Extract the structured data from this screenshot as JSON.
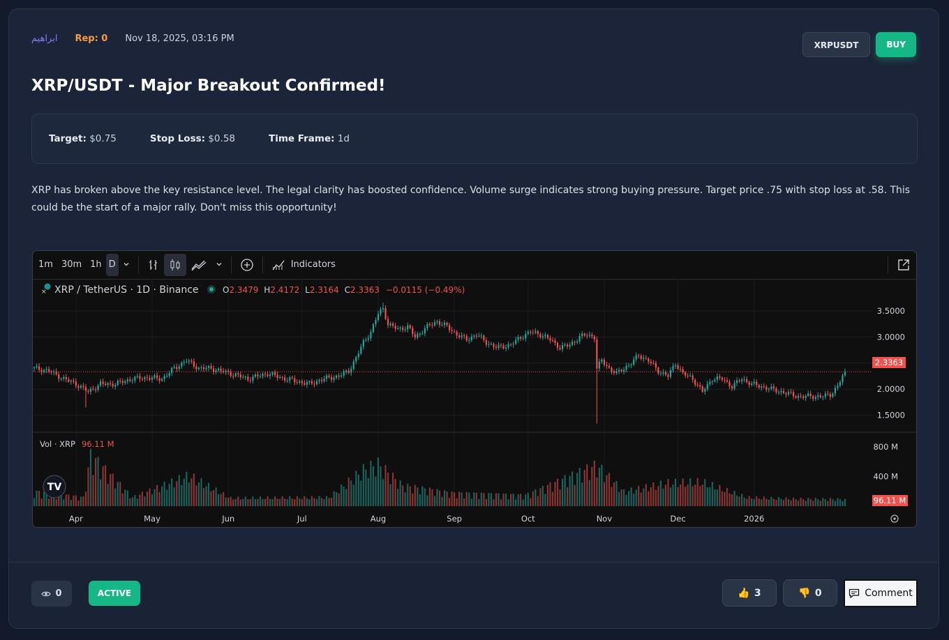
{
  "post": {
    "author": "ابراهيم",
    "rep": "Rep: 0",
    "date": "Nov 18, 2025, 03:16 PM",
    "symbol_button": "XRPUSDT",
    "side_button": "BUY",
    "title": "XRP/USDT - Major Breakout Confirmed!",
    "target_label": "Target:",
    "target_value": "$0.75",
    "stop_label": "Stop Loss:",
    "stop_value": "$0.58",
    "timeframe_label": "Time Frame:",
    "timeframe_value": "1d",
    "body": "XRP has broken above the key resistance level. The legal clarity has boosted confidence. Volume surge indicates strong buying pressure. Target price .75 with stop loss at .58. This could be the start of a major rally. Don't miss this opportunity!"
  },
  "widget": {
    "intervals": [
      "1m",
      "30m",
      "1h",
      "D"
    ],
    "active_interval": "D",
    "indicators_label": "Indicators",
    "symbol_title": "XRP / TetherUS · 1D · Binance",
    "ohlc": {
      "o_label": "O",
      "o": "2.3479",
      "h_label": "H",
      "h": "2.4172",
      "l_label": "L",
      "l": "2.3164",
      "c_label": "C",
      "c": "2.3363",
      "change": "−0.0115 (−0.49%)"
    },
    "price_tag": "2.3363",
    "vol_label": "Vol · XRP",
    "vol_value": "96.11 M",
    "vol_tag": "96.11 M",
    "up_color": "#26a69a",
    "down_color": "#ef5350"
  },
  "chart_data": {
    "type": "candlestick",
    "title": "XRP / TetherUS · 1D · Binance",
    "price_ticks": [
      "3.5000",
      "3.0000",
      "2.5000",
      "2.0000",
      "1.5000"
    ],
    "price_tick_values": [
      3.5,
      3.0,
      2.5,
      2.0,
      1.5
    ],
    "ylim": [
      1.2,
      3.85
    ],
    "volume_ticks": [
      "800 M",
      "400 M"
    ],
    "volume_tick_values": [
      800,
      400
    ],
    "volume_ylim": [
      0,
      920
    ],
    "x_labels": [
      "Apr",
      "May",
      "Jun",
      "Jul",
      "Aug",
      "Sep",
      "Oct",
      "Nov",
      "Dec",
      "2026"
    ],
    "last_close": 2.3363,
    "grid": true,
    "close_series": [
      {
        "x": 0,
        "y": 2.4
      },
      {
        "x": 6,
        "y": 2.35
      },
      {
        "x": 12,
        "y": 2.2
      },
      {
        "x": 17,
        "y": 2.1
      },
      {
        "x": 22,
        "y": 1.95
      },
      {
        "x": 27,
        "y": 2.1
      },
      {
        "x": 33,
        "y": 2.1
      },
      {
        "x": 40,
        "y": 2.2
      },
      {
        "x": 46,
        "y": 2.22
      },
      {
        "x": 52,
        "y": 2.2
      },
      {
        "x": 57,
        "y": 2.4
      },
      {
        "x": 62,
        "y": 2.55
      },
      {
        "x": 67,
        "y": 2.4
      },
      {
        "x": 72,
        "y": 2.4
      },
      {
        "x": 80,
        "y": 2.3
      },
      {
        "x": 87,
        "y": 2.2
      },
      {
        "x": 95,
        "y": 2.3
      },
      {
        "x": 102,
        "y": 2.2
      },
      {
        "x": 107,
        "y": 2.15
      },
      {
        "x": 112,
        "y": 2.1
      },
      {
        "x": 118,
        "y": 2.2
      },
      {
        "x": 124,
        "y": 2.25
      },
      {
        "x": 128,
        "y": 2.35
      },
      {
        "x": 131,
        "y": 2.6
      },
      {
        "x": 134,
        "y": 2.9
      },
      {
        "x": 137,
        "y": 3.1
      },
      {
        "x": 140,
        "y": 3.45
      },
      {
        "x": 142,
        "y": 3.55
      },
      {
        "x": 144,
        "y": 3.25
      },
      {
        "x": 148,
        "y": 3.15
      },
      {
        "x": 152,
        "y": 3.2
      },
      {
        "x": 155,
        "y": 3.0
      },
      {
        "x": 160,
        "y": 3.2
      },
      {
        "x": 164,
        "y": 3.3
      },
      {
        "x": 168,
        "y": 3.2
      },
      {
        "x": 172,
        "y": 3.05
      },
      {
        "x": 176,
        "y": 2.95
      },
      {
        "x": 180,
        "y": 3.05
      },
      {
        "x": 184,
        "y": 2.9
      },
      {
        "x": 188,
        "y": 2.8
      },
      {
        "x": 194,
        "y": 2.85
      },
      {
        "x": 198,
        "y": 3.0
      },
      {
        "x": 202,
        "y": 3.1
      },
      {
        "x": 206,
        "y": 3.05
      },
      {
        "x": 210,
        "y": 2.95
      },
      {
        "x": 214,
        "y": 2.8
      },
      {
        "x": 218,
        "y": 2.85
      },
      {
        "x": 222,
        "y": 3.0
      },
      {
        "x": 225,
        "y": 3.05
      },
      {
        "x": 228,
        "y": 3.0
      },
      {
        "x": 229,
        "y": 2.4
      },
      {
        "x": 231,
        "y": 2.55
      },
      {
        "x": 234,
        "y": 2.4
      },
      {
        "x": 237,
        "y": 2.3
      },
      {
        "x": 240,
        "y": 2.4
      },
      {
        "x": 243,
        "y": 2.5
      },
      {
        "x": 246,
        "y": 2.65
      },
      {
        "x": 250,
        "y": 2.55
      },
      {
        "x": 254,
        "y": 2.35
      },
      {
        "x": 258,
        "y": 2.25
      },
      {
        "x": 261,
        "y": 2.5
      },
      {
        "x": 264,
        "y": 2.3
      },
      {
        "x": 268,
        "y": 2.2
      },
      {
        "x": 272,
        "y": 1.95
      },
      {
        "x": 276,
        "y": 2.2
      },
      {
        "x": 280,
        "y": 2.2
      },
      {
        "x": 284,
        "y": 2.05
      },
      {
        "x": 288,
        "y": 2.2
      },
      {
        "x": 292,
        "y": 2.1
      },
      {
        "x": 296,
        "y": 2.05
      },
      {
        "x": 300,
        "y": 2.0
      },
      {
        "x": 304,
        "y": 1.95
      },
      {
        "x": 308,
        "y": 1.9
      },
      {
        "x": 312,
        "y": 1.85
      },
      {
        "x": 316,
        "y": 1.87
      },
      {
        "x": 320,
        "y": 1.85
      },
      {
        "x": 324,
        "y": 1.9
      },
      {
        "x": 327,
        "y": 2.05
      },
      {
        "x": 329,
        "y": 2.25
      },
      {
        "x": 330,
        "y": 2.3363
      }
    ],
    "volume_series": [
      {
        "x": 0,
        "y": 200
      },
      {
        "x": 20,
        "y": 120
      },
      {
        "x": 23,
        "y": 700
      },
      {
        "x": 40,
        "y": 120
      },
      {
        "x": 63,
        "y": 420
      },
      {
        "x": 80,
        "y": 110
      },
      {
        "x": 120,
        "y": 120
      },
      {
        "x": 134,
        "y": 500
      },
      {
        "x": 140,
        "y": 580
      },
      {
        "x": 150,
        "y": 280
      },
      {
        "x": 170,
        "y": 180
      },
      {
        "x": 200,
        "y": 150
      },
      {
        "x": 229,
        "y": 560
      },
      {
        "x": 240,
        "y": 200
      },
      {
        "x": 258,
        "y": 320
      },
      {
        "x": 272,
        "y": 330
      },
      {
        "x": 290,
        "y": 120
      },
      {
        "x": 310,
        "y": 100
      },
      {
        "x": 330,
        "y": 96.11
      }
    ]
  },
  "footer": {
    "views": "0",
    "status": "ACTIVE",
    "likes": "3",
    "dislikes": "0",
    "comment_label": "Comment"
  }
}
